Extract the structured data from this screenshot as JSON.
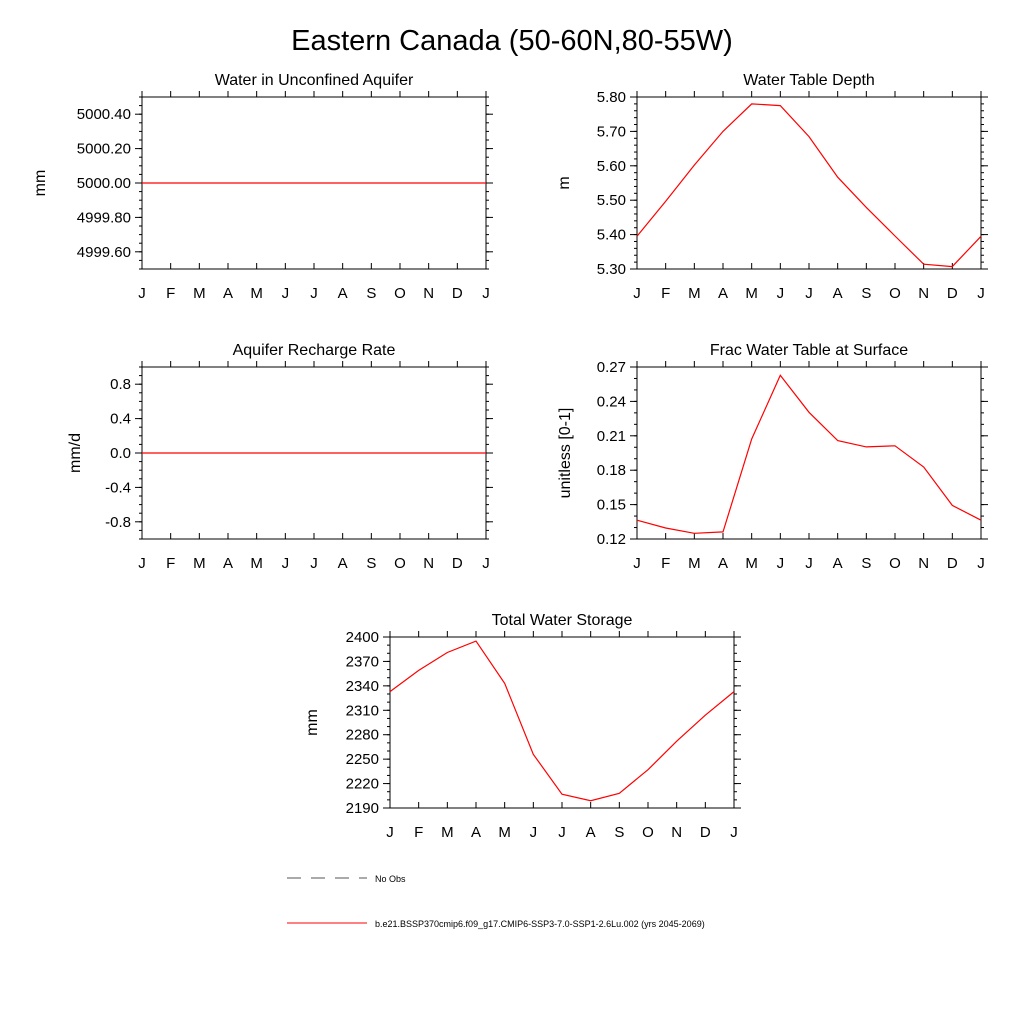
{
  "page_title": "Eastern Canada (50-60N,80-55W)",
  "months": [
    "J",
    "F",
    "M",
    "A",
    "M",
    "J",
    "J",
    "A",
    "S",
    "O",
    "N",
    "D",
    "J"
  ],
  "legend": {
    "obs_label": "No Obs",
    "model_label": "b.e21.BSSP370cmip6.f09_g17.CMIP6-SSP3-7.0-SSP1-2.6Lu.002 (yrs 2045-2069)",
    "model_color": "#ff0000",
    "obs_color": "#555555"
  },
  "chart_data": [
    {
      "id": "aquifer",
      "type": "line",
      "title": "Water in Unconfined Aquifer",
      "ylabel": "mm",
      "ylim": [
        4999.5,
        5000.5
      ],
      "yticks": [
        4999.6,
        4999.8,
        5000.0,
        5000.2,
        5000.4
      ],
      "ytick_labels": [
        "4999.60",
        "4999.80",
        "5000.00",
        "5000.20",
        "5000.40"
      ],
      "yminor_step": 0.05,
      "series": [
        {
          "values": [
            5000,
            5000,
            5000,
            5000,
            5000,
            5000,
            5000,
            5000,
            5000,
            5000,
            5000,
            5000,
            5000
          ],
          "color": "#ff0000"
        }
      ]
    },
    {
      "id": "wtd",
      "type": "line",
      "title": "Water Table Depth",
      "ylabel": "m",
      "ylim": [
        5.3,
        5.8
      ],
      "yticks": [
        5.3,
        5.4,
        5.5,
        5.6,
        5.7,
        5.8
      ],
      "ytick_labels": [
        "5.30",
        "5.40",
        "5.50",
        "5.60",
        "5.70",
        "5.80"
      ],
      "yminor_step": 0.02,
      "series": [
        {
          "values": [
            5.395,
            5.497,
            5.602,
            5.7,
            5.78,
            5.775,
            5.685,
            5.567,
            5.479,
            5.396,
            5.314,
            5.307,
            5.395
          ],
          "color": "#ff0000"
        }
      ]
    },
    {
      "id": "recharge",
      "type": "line",
      "title": "Aquifer Recharge Rate",
      "ylabel": "mm/d",
      "ylim": [
        -1.0,
        1.0
      ],
      "yticks": [
        -0.8,
        -0.4,
        0.0,
        0.4,
        0.8
      ],
      "ytick_labels": [
        "-0.8",
        "-0.4",
        "0.0",
        "0.4",
        "0.8"
      ],
      "yminor_step": 0.1,
      "series": [
        {
          "values": [
            0,
            0,
            0,
            0,
            0,
            0,
            0,
            0,
            0,
            0,
            0,
            0,
            0
          ],
          "color": "#ff0000"
        }
      ]
    },
    {
      "id": "fwt",
      "type": "line",
      "title": "Frac Water Table at Surface",
      "ylabel": "unitless [0-1]",
      "ylim": [
        0.12,
        0.27
      ],
      "yticks": [
        0.12,
        0.15,
        0.18,
        0.21,
        0.24,
        0.27
      ],
      "ytick_labels": [
        "0.12",
        "0.15",
        "0.18",
        "0.21",
        "0.24",
        "0.27"
      ],
      "yminor_step": 0.01,
      "series": [
        {
          "values": [
            0.1364,
            0.1296,
            0.125,
            0.1262,
            0.2072,
            0.2628,
            0.2305,
            0.2058,
            0.2003,
            0.2013,
            0.1828,
            0.1493,
            0.1364
          ],
          "color": "#ff0000"
        }
      ]
    },
    {
      "id": "tws",
      "type": "line",
      "title": "Total Water Storage",
      "ylabel": "mm",
      "ylim": [
        2190,
        2400
      ],
      "yticks": [
        2190,
        2220,
        2250,
        2280,
        2310,
        2340,
        2370,
        2400
      ],
      "ytick_labels": [
        "2190",
        "2220",
        "2250",
        "2280",
        "2310",
        "2340",
        "2370",
        "2400"
      ],
      "yminor_step": 10,
      "series": [
        {
          "values": [
            2333,
            2359,
            2381,
            2395,
            2343,
            2256,
            2207,
            2199,
            2208,
            2237,
            2272,
            2304,
            2333
          ],
          "color": "#ff0000"
        }
      ]
    }
  ]
}
